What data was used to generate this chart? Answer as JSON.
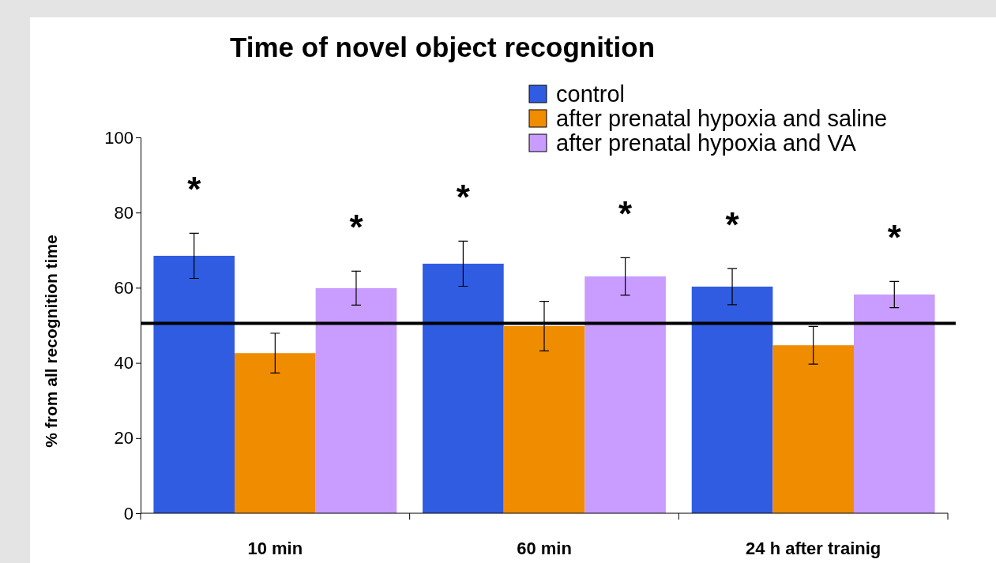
{
  "chart_data": {
    "type": "bar",
    "title": "Time of novel object recognition",
    "ylabel": "% from all recognition time",
    "categories": [
      "10 min",
      "60 min",
      "24 h after trainig"
    ],
    "series": [
      {
        "name": "control",
        "color": "#2f5ce0",
        "values": [
          68.5,
          66.4,
          60.3
        ],
        "errors": [
          6,
          6,
          4.8
        ]
      },
      {
        "name": "after prenatal hypoxia and saline",
        "color": "#f08c00",
        "values": [
          42.6,
          49.8,
          44.7
        ],
        "errors": [
          5.3,
          6.6,
          5
        ]
      },
      {
        "name": "after prenatal hypoxia and VA",
        "color": "#c99cff",
        "values": [
          59.9,
          63,
          58.2
        ],
        "errors": [
          4.5,
          5,
          3.5
        ]
      }
    ],
    "ylim": [
      0,
      100
    ],
    "yticks": [
      0,
      20,
      40,
      60,
      80,
      100
    ],
    "ref_lines": [
      {
        "axis": "y",
        "value": 50.5,
        "color": "#000000"
      }
    ],
    "annotations": [
      "*",
      "*",
      "*",
      "*",
      "*",
      "*"
    ],
    "legend": "top right",
    "grid": false
  }
}
